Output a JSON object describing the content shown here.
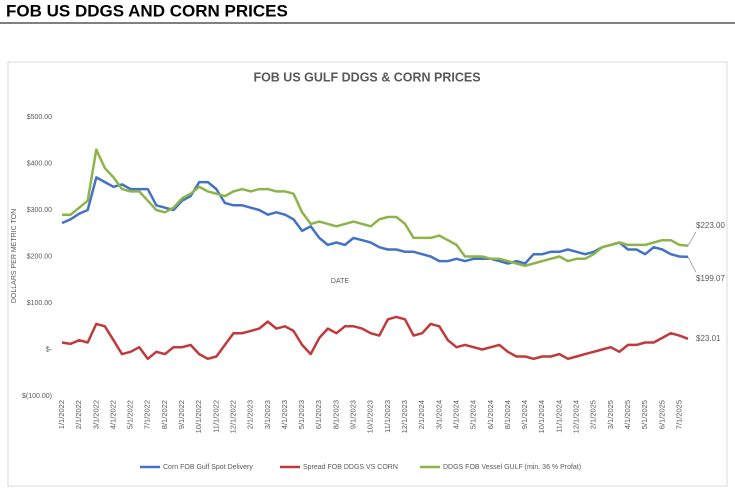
{
  "header": {
    "title": "FOB US DDGS AND CORN PRICES"
  },
  "chart_data": {
    "type": "line",
    "title": "FOB US GULF DDGS & CORN PRICES",
    "xlabel": "DATE",
    "ylabel": "DOLLARS PER METRIC TON",
    "categories": [
      "1/1/2022",
      null,
      "2/1/2022",
      null,
      "3/1/2022",
      null,
      "4/1/2022",
      null,
      "5/1/2022",
      null,
      "7/1/2022",
      null,
      "8/1/2022",
      null,
      "9/1/2022",
      null,
      "10/1/2022",
      null,
      "11/1/2022",
      null,
      "12/1/2022",
      null,
      "2/1/2023",
      null,
      "3/1/2023",
      null,
      "4/1/2023",
      null,
      "5/1/2023",
      null,
      "6/1/2023",
      null,
      "8/1/2023",
      null,
      "9/1/2023",
      null,
      "10/1/2023",
      null,
      "11/1/2023",
      null,
      "12/1/2023",
      null,
      "2/1/2024",
      null,
      "3/1/2024",
      null,
      "4/1/2024",
      null,
      "5/1/2024",
      null,
      "6/1/2024",
      null,
      "8/1/2024",
      null,
      "9/1/2024",
      null,
      "10/1/2024",
      null,
      "11/1/2024",
      null,
      "12/1/2024",
      null,
      "2/1/2025",
      null,
      "3/1/2025",
      null,
      "4/1/2025",
      null,
      "5/1/2025",
      null,
      "6/1/2025",
      null,
      "7/1/2025",
      null
    ],
    "series": [
      {
        "name": "Corn FOB Gulf Spot Delivery",
        "color": "#4472c4",
        "end_label": "$199.07",
        "values": [
          272,
          280,
          292,
          300,
          370,
          360,
          350,
          355,
          345,
          345,
          345,
          310,
          305,
          300,
          320,
          330,
          360,
          360,
          345,
          315,
          310,
          310,
          305,
          300,
          290,
          295,
          290,
          280,
          255,
          265,
          240,
          225,
          230,
          225,
          240,
          235,
          230,
          220,
          215,
          215,
          210,
          210,
          205,
          200,
          190,
          190,
          195,
          190,
          195,
          195,
          195,
          190,
          185,
          190,
          185,
          205,
          205,
          210,
          210,
          215,
          210,
          205,
          210,
          220,
          225,
          230,
          215,
          215,
          205,
          220,
          215,
          205,
          200,
          199.07
        ]
      },
      {
        "name": "Spread FOB DDGS VS CORN",
        "color": "#c0393b",
        "end_label": "$23.01",
        "values": [
          15,
          12,
          20,
          15,
          55,
          50,
          20,
          -10,
          -5,
          5,
          -20,
          -5,
          -10,
          5,
          5,
          10,
          -10,
          -20,
          -15,
          10,
          35,
          35,
          40,
          45,
          60,
          45,
          50,
          40,
          10,
          -10,
          25,
          45,
          35,
          50,
          50,
          45,
          35,
          30,
          65,
          70,
          65,
          30,
          35,
          55,
          50,
          20,
          5,
          10,
          5,
          0,
          5,
          10,
          -5,
          -15,
          -15,
          -20,
          -15,
          -15,
          -10,
          -20,
          -15,
          -10,
          -5,
          0,
          5,
          -5,
          10,
          10,
          15,
          15,
          25,
          35,
          30,
          23.01
        ]
      },
      {
        "name": "DDGS FOB Vessel GULF  (min. 36 % Profat)",
        "color": "#8cb449",
        "end_label": "$223.00",
        "values": [
          290,
          290,
          305,
          320,
          430,
          390,
          370,
          345,
          340,
          340,
          320,
          300,
          295,
          305,
          325,
          335,
          350,
          340,
          335,
          330,
          340,
          345,
          340,
          345,
          345,
          340,
          340,
          335,
          295,
          270,
          275,
          270,
          265,
          270,
          275,
          270,
          265,
          280,
          285,
          285,
          270,
          240,
          240,
          240,
          245,
          235,
          225,
          200,
          200,
          200,
          195,
          195,
          190,
          185,
          180,
          185,
          190,
          195,
          200,
          190,
          195,
          195,
          205,
          220,
          225,
          230,
          225,
          225,
          225,
          230,
          235,
          235,
          225,
          223
        ]
      }
    ],
    "ylim": [
      -100,
      500
    ],
    "yticks": [
      {
        "value": -100,
        "label": "$(100.00)"
      },
      {
        "value": 0,
        "label": "$-"
      },
      {
        "value": 100,
        "label": "$100.00"
      },
      {
        "value": 200,
        "label": "$200.00"
      },
      {
        "value": 300,
        "label": "$300.00"
      },
      {
        "value": 400,
        "label": "$400.00"
      },
      {
        "value": 500,
        "label": "$500.00"
      }
    ],
    "grid": false
  }
}
